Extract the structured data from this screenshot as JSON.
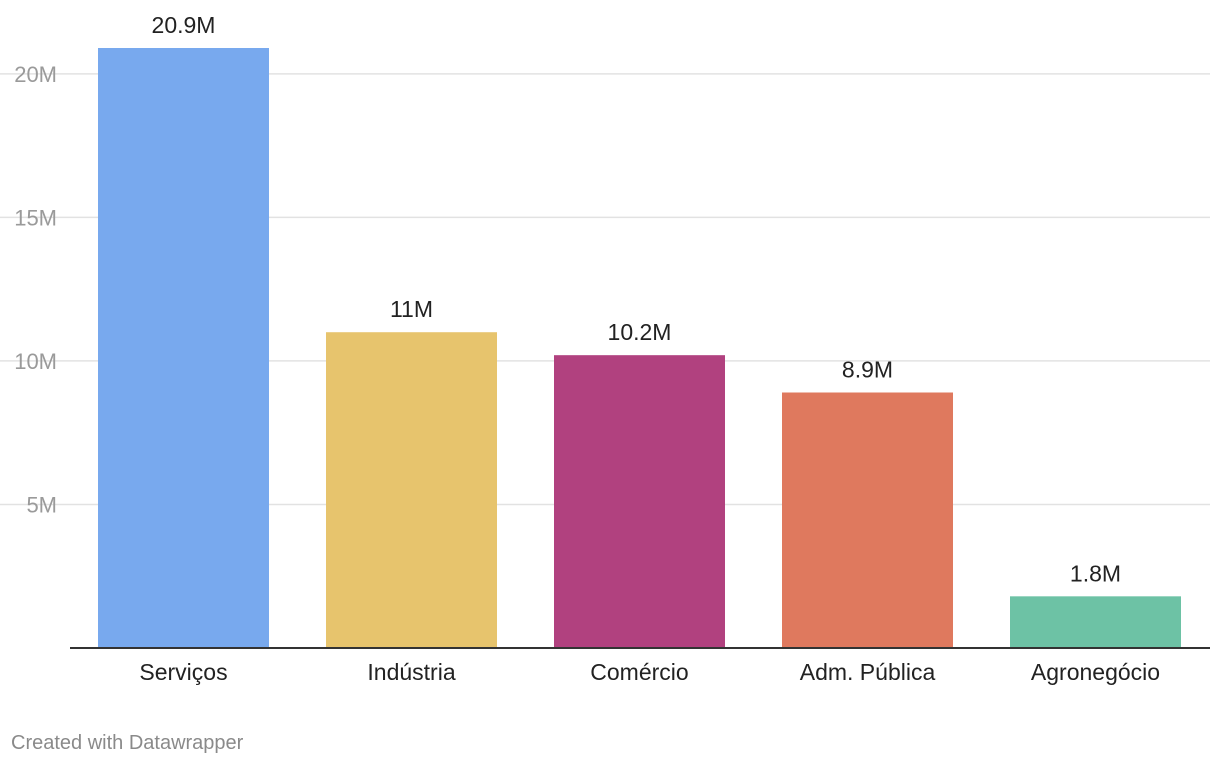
{
  "chart_data": {
    "type": "bar",
    "categories": [
      "Serviços",
      "Indústria",
      "Comércio",
      "Adm. Pública",
      "Agronegócio"
    ],
    "values": [
      20.9,
      11,
      10.2,
      8.9,
      1.8
    ],
    "value_labels": [
      "20.9M",
      "11M",
      "10.2M",
      "8.9M",
      "1.8M"
    ],
    "colors": [
      "#78a9ee",
      "#e7c46d",
      "#b1417f",
      "#df795e",
      "#6dc2a5"
    ],
    "yticks": [
      {
        "value": 5,
        "label": "5M"
      },
      {
        "value": 10,
        "label": "10M"
      },
      {
        "value": 15,
        "label": "15M"
      },
      {
        "value": 20,
        "label": "20M"
      }
    ],
    "ylim": [
      0,
      20.9
    ],
    "grid": true,
    "title": "",
    "xlabel": "",
    "ylabel": ""
  },
  "footer": {
    "credit": "Created with Datawrapper"
  }
}
